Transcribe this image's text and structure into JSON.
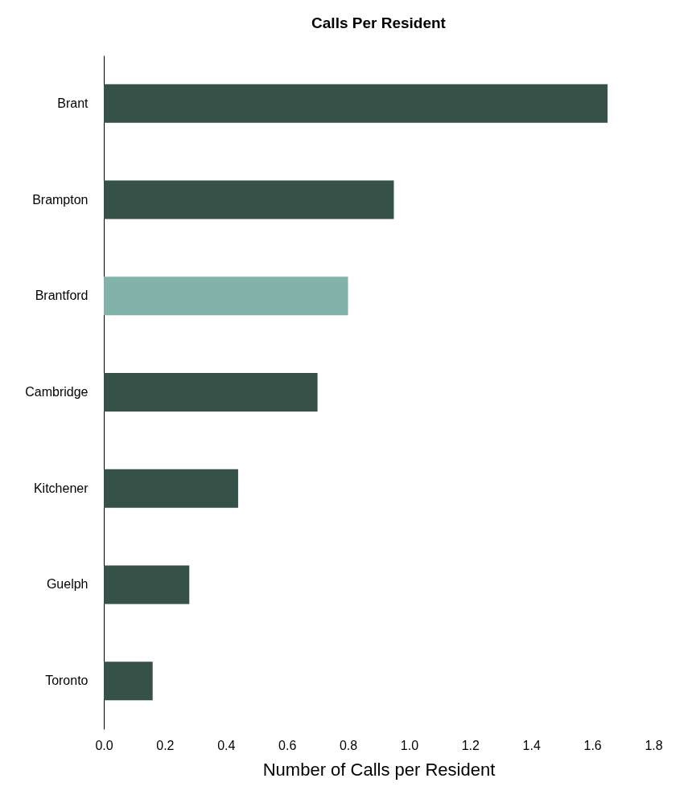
{
  "chart_data": {
    "type": "bar",
    "orientation": "horizontal",
    "title": "Calls Per Resident",
    "xlabel": "Number of Calls per Resident",
    "categories": [
      "Brant",
      "Brampton",
      "Brantford",
      "Cambridge",
      "Kitchener",
      "Guelph",
      "Toronto"
    ],
    "values": [
      1.65,
      0.95,
      0.8,
      0.7,
      0.44,
      0.28,
      0.16
    ],
    "colors": [
      "#365148",
      "#365148",
      "#82b3ab",
      "#365148",
      "#365148",
      "#365148",
      "#365148"
    ],
    "xlim": [
      0,
      1.8
    ],
    "xticks": [
      {
        "value": 0,
        "label": "0.0"
      },
      0.2,
      0.4,
      0.6,
      0.8,
      {
        "value": 1,
        "label": "1.0"
      },
      1.2,
      1.4,
      1.6,
      1.8
    ],
    "grid": false
  }
}
